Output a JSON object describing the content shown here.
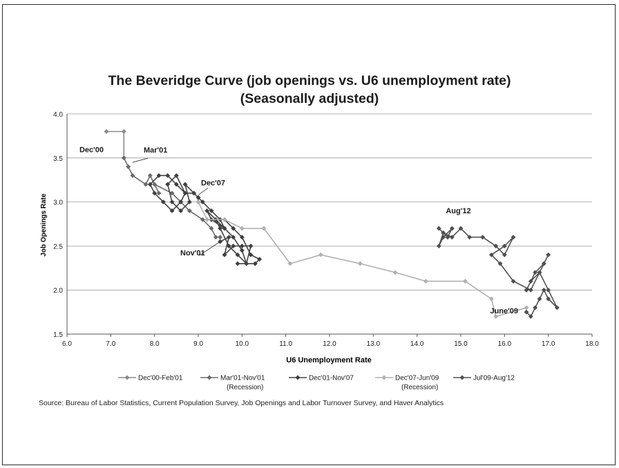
{
  "chart_data": {
    "type": "line",
    "title": "The Beveridge Curve (job openings vs. U6 unemployment rate)",
    "subtitle": "(Seasonally adjusted)",
    "xlabel": "U6 Unemployment Rate",
    "ylabel": "Job Openings Rate",
    "xlim": [
      6.0,
      18.0
    ],
    "ylim": [
      1.5,
      4.0
    ],
    "xticks": [
      "6.0",
      "7.0",
      "8.0",
      "9.0",
      "10.0",
      "11.0",
      "12.0",
      "13.0",
      "14.0",
      "15.0",
      "16.0",
      "17.0",
      "18.0"
    ],
    "yticks": [
      "1.5",
      "2.0",
      "2.5",
      "3.0",
      "3.5",
      "4.0"
    ],
    "grid": "horizontal",
    "legend_position": "bottom",
    "series": [
      {
        "name": "Dec'00-Feb'01",
        "sublabel": "",
        "color": "#8a8a8a",
        "marker": "diamond",
        "x": [
          6.9,
          7.3,
          7.3
        ],
        "y": [
          3.8,
          3.8,
          3.5
        ]
      },
      {
        "name": "Mar'01-Nov'01",
        "sublabel": "(Recession)",
        "color": "#6a6a6a",
        "marker": "diamond",
        "x": [
          7.3,
          7.4,
          7.5,
          7.8,
          7.9,
          8.1,
          8.0,
          8.4,
          8.6,
          8.8,
          9.1,
          9.3,
          9.4,
          9.5,
          9.5
        ],
        "y": [
          3.5,
          3.4,
          3.3,
          3.2,
          3.3,
          3.1,
          3.2,
          3.1,
          3.0,
          2.9,
          2.8,
          2.7,
          2.6,
          2.6,
          2.55
        ]
      },
      {
        "name": "Dec'01-Nov'07",
        "sublabel": "",
        "color": "#404040",
        "marker": "diamond",
        "x": [
          9.5,
          9.7,
          9.6,
          9.8,
          10.0,
          10.2,
          10.1,
          9.9,
          10.3,
          10.4,
          10.2,
          10.0,
          9.8,
          9.6,
          9.4,
          9.5,
          9.7,
          9.9,
          10.1,
          10.0,
          9.8,
          9.6,
          9.3,
          9.2,
          9.4,
          9.6,
          9.5,
          9.3,
          9.1,
          8.9,
          8.7,
          8.8,
          8.6,
          8.4,
          8.3,
          8.5,
          8.7,
          8.6,
          8.4,
          8.2,
          8.0,
          7.9,
          8.1,
          8.3,
          8.5,
          8.7,
          8.9,
          9.0,
          9.0
        ],
        "y": [
          2.55,
          2.6,
          2.4,
          2.5,
          2.5,
          2.5,
          2.3,
          2.3,
          2.3,
          2.35,
          2.4,
          2.6,
          2.7,
          2.8,
          2.8,
          2.7,
          2.5,
          2.4,
          2.3,
          2.45,
          2.6,
          2.7,
          2.8,
          2.9,
          2.8,
          2.7,
          2.8,
          2.9,
          3.0,
          3.1,
          3.2,
          3.0,
          2.9,
          3.0,
          3.2,
          3.3,
          3.1,
          3.0,
          2.9,
          3.0,
          3.1,
          3.2,
          3.3,
          3.3,
          3.2,
          3.1,
          3.1,
          3.05,
          3.0
        ]
      },
      {
        "name": "Dec'07-Jun'09",
        "sublabel": "(Recession)",
        "color": "#b0b0b0",
        "marker": "diamond",
        "x": [
          9.0,
          9.2,
          9.6,
          10.0,
          10.5,
          11.1,
          11.8,
          12.7,
          13.5,
          14.2,
          15.1,
          15.7,
          15.8,
          16.5,
          16.5
        ],
        "y": [
          3.0,
          2.8,
          2.8,
          2.7,
          2.7,
          2.3,
          2.4,
          2.3,
          2.2,
          2.1,
          2.1,
          1.9,
          1.7,
          1.8,
          1.75
        ]
      },
      {
        "name": "Jul'09-Aug'12",
        "sublabel": "",
        "color": "#505050",
        "marker": "diamond",
        "x": [
          16.5,
          16.6,
          16.7,
          16.8,
          16.9,
          17.0,
          17.2,
          17.0,
          16.8,
          16.6,
          16.5,
          16.7,
          16.9,
          17.0,
          16.8,
          16.6,
          16.2,
          15.9,
          15.7,
          16.0,
          16.2,
          16.0,
          15.8,
          15.5,
          15.2,
          15.0,
          14.8,
          14.6,
          14.5,
          14.6,
          14.8,
          14.7,
          14.5
        ],
        "y": [
          1.75,
          1.7,
          1.8,
          1.9,
          2.0,
          1.9,
          1.8,
          2.0,
          2.2,
          2.1,
          2.0,
          2.2,
          2.3,
          2.4,
          2.2,
          2.0,
          2.1,
          2.3,
          2.4,
          2.5,
          2.6,
          2.4,
          2.5,
          2.6,
          2.6,
          2.7,
          2.6,
          2.65,
          2.5,
          2.6,
          2.7,
          2.6,
          2.7
        ]
      }
    ],
    "annotations": [
      {
        "text": "Dec'00",
        "x": 6.9,
        "y": 3.8
      },
      {
        "text": "Mar'01",
        "x": 7.5,
        "y": 3.45
      },
      {
        "text": "Dec'07",
        "x": 9.0,
        "y": 3.08
      },
      {
        "text": "Nov'01",
        "x": 9.5,
        "y": 2.55
      },
      {
        "text": "Aug'12",
        "x": 14.5,
        "y": 2.7
      },
      {
        "text": "June'09",
        "x": 16.5,
        "y": 1.75
      }
    ]
  },
  "source": "Source: Bureau of Labor Statistics, Current Population Survey, Job Openings and Labor Turnover Survey, and Haver Analytics"
}
